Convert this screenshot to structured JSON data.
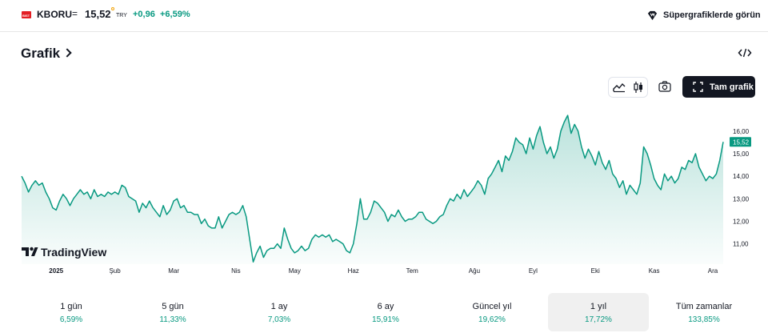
{
  "header": {
    "exchange_badge": "BIST",
    "ticker": "KBORU",
    "equals": "=",
    "price": "15,52",
    "currency": "TRY",
    "change_abs": "+0,96",
    "change_pct": "+6,59%",
    "supercharts_label": "Süpergrafiklerde görün"
  },
  "section": {
    "title": "Grafik"
  },
  "toolbar": {
    "fullscreen_label": "Tam grafik",
    "icons": [
      "area-chart-icon",
      "candles-icon",
      "camera-icon",
      "fullscreen-icon",
      "embed-code-icon"
    ]
  },
  "brand": {
    "watermark": "TradingView"
  },
  "chart_data": {
    "type": "area",
    "symbol": "KBORU",
    "currency": "TRY",
    "colors": {
      "line": "#089981",
      "price_tag": "#089981",
      "text": "#131722"
    },
    "last_value": 15.52,
    "last_value_label": "15,52",
    "y_ticks": [
      {
        "v": 11,
        "label": "11,00"
      },
      {
        "v": 12,
        "label": "12,00"
      },
      {
        "v": 13,
        "label": "13,00"
      },
      {
        "v": 14,
        "label": "14,00"
      },
      {
        "v": 15,
        "label": "15,00"
      },
      {
        "v": 16,
        "label": "16,00"
      }
    ],
    "ylim": [
      10.1,
      17.2
    ],
    "x_ticks": [
      {
        "i": 10,
        "label": "2025"
      },
      {
        "i": 27,
        "label": "Şub"
      },
      {
        "i": 44,
        "label": "Mar"
      },
      {
        "i": 62,
        "label": "Nis"
      },
      {
        "i": 79,
        "label": "May"
      },
      {
        "i": 96,
        "label": "Haz"
      },
      {
        "i": 113,
        "label": "Tem"
      },
      {
        "i": 131,
        "label": "Ağu"
      },
      {
        "i": 148,
        "label": "Eyl"
      },
      {
        "i": 166,
        "label": "Eki"
      },
      {
        "i": 183,
        "label": "Kas"
      },
      {
        "i": 200,
        "label": "Ara"
      }
    ],
    "values": [
      14.0,
      13.7,
      13.3,
      13.6,
      13.8,
      13.6,
      13.7,
      13.3,
      13.0,
      12.6,
      12.5,
      12.9,
      13.2,
      13.0,
      12.7,
      13.0,
      13.2,
      13.4,
      13.2,
      13.3,
      13.0,
      13.4,
      13.1,
      13.2,
      13.1,
      13.3,
      13.2,
      13.3,
      13.2,
      13.6,
      13.5,
      13.1,
      13.0,
      12.9,
      12.4,
      12.8,
      12.6,
      12.9,
      12.6,
      12.4,
      12.2,
      12.7,
      12.3,
      12.5,
      12.9,
      13.0,
      12.6,
      12.7,
      12.4,
      12.4,
      12.3,
      12.3,
      11.9,
      12.1,
      11.8,
      11.7,
      11.7,
      12.2,
      11.7,
      12.0,
      12.3,
      12.4,
      12.3,
      12.4,
      12.7,
      12.2,
      11.2,
      10.2,
      10.6,
      10.9,
      10.4,
      10.7,
      10.8,
      10.8,
      11.0,
      10.8,
      11.7,
      11.2,
      10.8,
      10.6,
      10.7,
      10.9,
      10.7,
      10.8,
      11.2,
      11.4,
      11.3,
      11.4,
      11.3,
      11.4,
      11.1,
      11.2,
      11.1,
      11.0,
      10.7,
      10.6,
      11.0,
      11.9,
      13.0,
      12.1,
      12.1,
      12.4,
      12.9,
      12.8,
      12.6,
      12.4,
      12.0,
      12.3,
      12.2,
      12.5,
      12.2,
      12.0,
      12.1,
      12.1,
      12.2,
      12.4,
      12.4,
      12.1,
      12.0,
      11.9,
      12.0,
      12.2,
      12.3,
      12.7,
      13.0,
      12.9,
      13.2,
      13.0,
      13.4,
      13.1,
      13.3,
      13.5,
      13.8,
      13.6,
      13.2,
      13.9,
      14.1,
      14.4,
      14.7,
      14.2,
      14.9,
      14.7,
      15.1,
      15.7,
      15.5,
      15.4,
      15.0,
      15.7,
      15.2,
      15.8,
      16.2,
      15.5,
      15.0,
      15.3,
      14.8,
      15.2,
      16.0,
      16.4,
      16.7,
      15.9,
      16.3,
      16.0,
      15.3,
      14.8,
      15.2,
      14.9,
      14.5,
      15.1,
      14.6,
      14.3,
      14.7,
      14.1,
      13.9,
      13.5,
      13.8,
      13.2,
      13.6,
      13.4,
      13.2,
      13.7,
      15.3,
      15.0,
      14.5,
      13.9,
      13.6,
      13.4,
      14.1,
      13.8,
      14.0,
      13.7,
      13.9,
      14.4,
      14.3,
      14.7,
      14.6,
      15.0,
      14.4,
      14.1,
      13.8,
      14.0,
      13.9,
      14.1,
      14.7,
      15.52
    ]
  },
  "periods": [
    {
      "label": "1 gün",
      "value": "6,59%"
    },
    {
      "label": "5 gün",
      "value": "11,33%"
    },
    {
      "label": "1 ay",
      "value": "7,03%"
    },
    {
      "label": "6 ay",
      "value": "15,91%"
    },
    {
      "label": "Güncel yıl",
      "value": "19,62%"
    },
    {
      "label": "1 yıl",
      "value": "17,72%"
    },
    {
      "label": "Tüm zamanlar",
      "value": "133,85%"
    }
  ]
}
